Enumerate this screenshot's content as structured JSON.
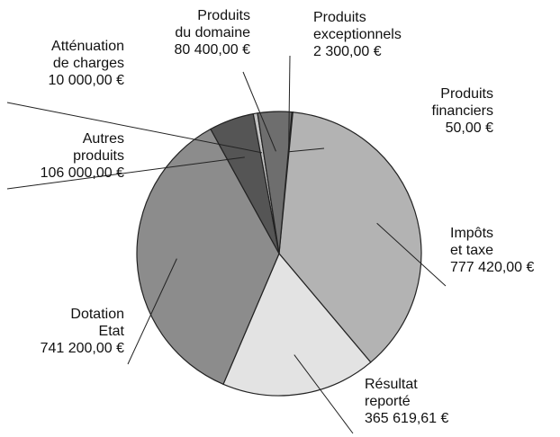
{
  "chart_data": {
    "type": "pie",
    "categories": [
      "Produits\nexceptionnels",
      "Produits\nfinanciers",
      "Impôts\net taxe",
      "Résultat\nreporté",
      "Dotation\nEtat",
      "Autres\nproduits",
      "Atténuation\nde charges",
      "Produits\ndu domaine"
    ],
    "values": [
      2300,
      50,
      777420,
      365619.61,
      741200,
      106000,
      10000,
      80400
    ],
    "value_labels": [
      "2 300,00 €",
      "50,00 €",
      "777 420,00 €",
      "365 619,61 €",
      "741 200,00 €",
      "106 000,00 €",
      "10 000,00 €",
      "80 400,00 €"
    ],
    "colors": [
      "#ffffff",
      "#222222",
      "#b3b3b3",
      "#e3e3e3",
      "#8c8c8c",
      "#555555",
      "#c2c2c2",
      "#6e6e6e"
    ]
  }
}
